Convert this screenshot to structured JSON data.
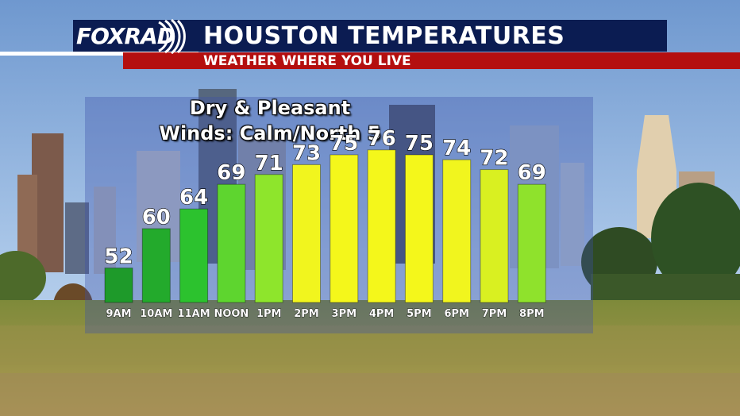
{
  "header": {
    "logo_text": "FOXRAD",
    "title": "HOUSTON TEMPERATURES",
    "subtitle": "WEATHER WHERE YOU LIVE"
  },
  "panel": {
    "line1": "Dry & Pleasant",
    "line2": "Winds: Calm/North 5"
  },
  "chart_data": {
    "type": "bar",
    "categories": [
      "9AM",
      "10AM",
      "11AM",
      "NOON",
      "1PM",
      "2PM",
      "3PM",
      "4PM",
      "5PM",
      "6PM",
      "7PM",
      "8PM"
    ],
    "values": [
      52,
      60,
      64,
      69,
      71,
      73,
      75,
      76,
      75,
      74,
      72,
      69
    ],
    "bar_colors": [
      "#1e9a2a",
      "#23aa2c",
      "#2cc22e",
      "#5ed52f",
      "#8ee52c",
      "#f1f51e",
      "#f4f71b",
      "#f4f71b",
      "#f4f71b",
      "#f1f51e",
      "#d9f021",
      "#8fe22c"
    ]
  }
}
